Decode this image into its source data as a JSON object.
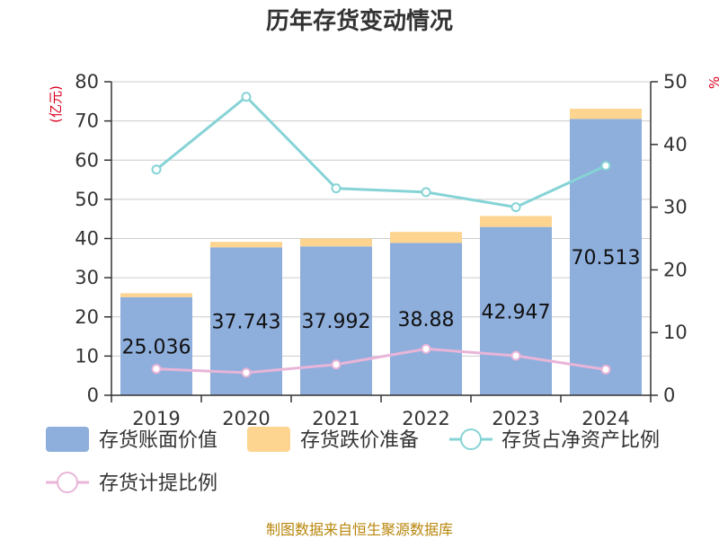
{
  "chart_data": {
    "type": "bar",
    "title": "历年存货变动情况",
    "categories": [
      "2019",
      "2020",
      "2021",
      "2022",
      "2023",
      "2024"
    ],
    "left_axis": {
      "unit": "(亿元)",
      "ticks": [
        "0",
        "10",
        "20",
        "30",
        "40",
        "50",
        "60",
        "70",
        "80"
      ],
      "ylim": [
        0,
        80
      ]
    },
    "right_axis": {
      "unit": "%",
      "ticks": [
        "0",
        "10",
        "20",
        "30",
        "40",
        "50"
      ],
      "ylim": [
        0,
        50
      ]
    },
    "series": [
      {
        "name": "存货账面价值",
        "type": "bar",
        "axis": "left",
        "color": "#8eaedc",
        "values": [
          25.036,
          37.743,
          37.992,
          38.88,
          42.947,
          70.513
        ],
        "labels": [
          "25.036",
          "37.743",
          "37.992",
          "38.88",
          "42.947",
          "70.513"
        ]
      },
      {
        "name": "存货跌价准备",
        "type": "bar-stacked",
        "axis": "left",
        "color": "#fdd591",
        "values": [
          1.0,
          1.4,
          2.0,
          2.8,
          2.8,
          2.6
        ]
      },
      {
        "name": "存货占净资产比例",
        "type": "line",
        "axis": "right",
        "color": "#86d3d6",
        "values": [
          36.0,
          47.6,
          33.0,
          32.4,
          30.0,
          36.6
        ]
      },
      {
        "name": "存货计提比例",
        "type": "line",
        "axis": "right",
        "color": "#e8b5d8",
        "values": [
          4.2,
          3.6,
          4.9,
          7.4,
          6.3,
          4.1
        ]
      }
    ],
    "grid": true,
    "legend": "bottom"
  },
  "source": "制图数据来自恒生聚源数据库"
}
